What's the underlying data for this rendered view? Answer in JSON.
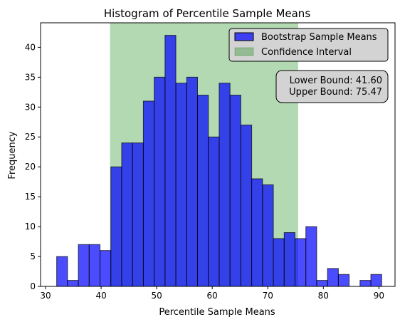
{
  "chart_data": {
    "type": "bar",
    "title": "Histogram of Percentile Sample Means",
    "xlabel": "Percentile Sample Means",
    "ylabel": "Frequency",
    "xlim": [
      29.1,
      92.9
    ],
    "ylim": [
      0,
      44.1
    ],
    "x_ticks": [
      30,
      40,
      50,
      60,
      70,
      80,
      90
    ],
    "y_ticks": [
      0,
      5,
      10,
      15,
      20,
      25,
      30,
      35,
      40
    ],
    "bin_edges": [
      32.0,
      33.95,
      35.9,
      37.85,
      39.8,
      41.75,
      43.7,
      45.65,
      47.6,
      49.55,
      51.5,
      53.45,
      55.4,
      57.35,
      59.3,
      61.25,
      63.2,
      65.15,
      67.1,
      69.05,
      71.0,
      72.95,
      74.9,
      76.85,
      78.8,
      80.75,
      82.7,
      84.65,
      86.6,
      88.55,
      90.5
    ],
    "values": [
      5,
      1,
      7,
      7,
      6,
      20,
      24,
      24,
      31,
      35,
      42,
      34,
      35,
      32,
      25,
      34,
      32,
      27,
      18,
      17,
      8,
      9,
      8,
      10,
      1,
      3,
      2,
      0,
      1,
      2
    ],
    "bar_color": "#0000ff",
    "bar_edge_color": "#000000",
    "grid": false,
    "series": [
      {
        "name": "Bootstrap Sample Means",
        "color": "#0000ff"
      },
      {
        "name": "Confidence Interval",
        "color": "#008000"
      }
    ],
    "confidence_interval": {
      "lower": 41.6,
      "upper": 75.47,
      "color": "#008000"
    },
    "legend": {
      "placement": "upper right",
      "items": [
        "Bootstrap Sample Means",
        "Confidence Interval"
      ]
    },
    "annotation": {
      "lower_text": "Lower Bound: 41.60",
      "upper_text": "Upper Bound: 75.47",
      "background": "#d3d3d3"
    }
  }
}
